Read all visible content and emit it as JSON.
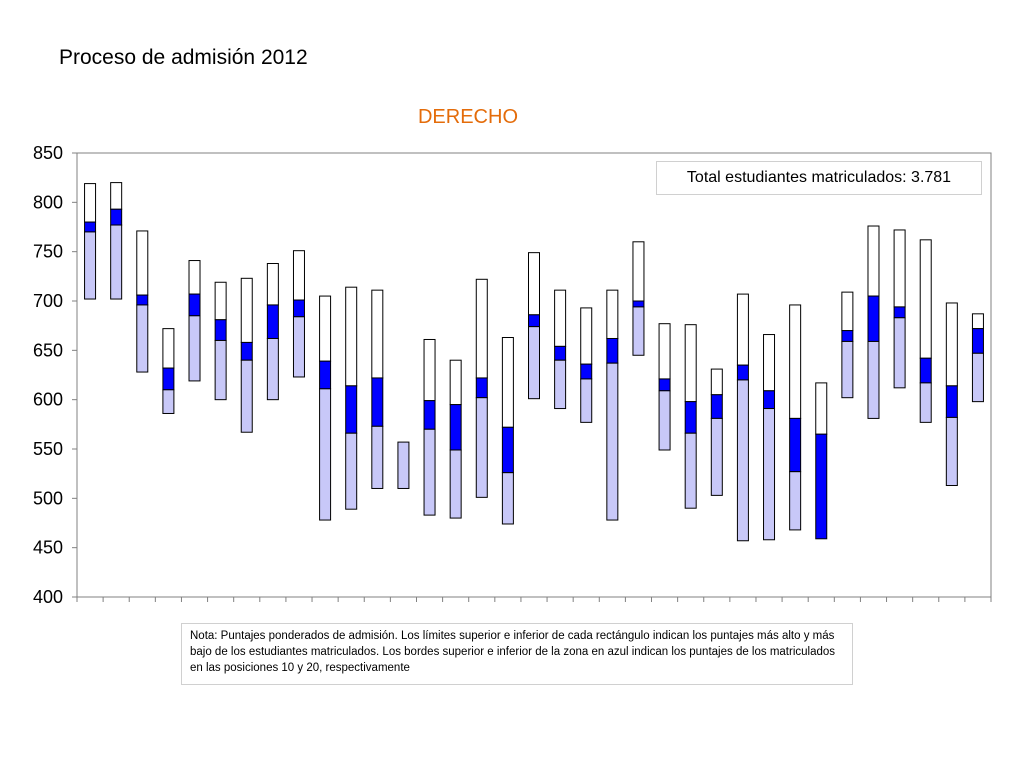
{
  "page_title": "Proceso de admisión 2012",
  "chart_title": "DERECHO",
  "total_label": "Total estudiantes matriculados: 3.781",
  "note": "Nota: Puntajes ponderados de admisión. Los límites superior e inferior de cada rectángulo indican los puntajes más alto y más bajo de los estudiantes matriculados. Los bordes superior e inferior de la zona en azul indican los puntajes de los matriculados en las posiciones 10 y 20, respectivamente",
  "colors": {
    "title_orange": "#e46c0a",
    "blue": "#0000ff",
    "light_blue": "#c8c8f8",
    "outline": "#000000",
    "white": "#ffffff"
  },
  "chart_data": {
    "type": "floating-bar",
    "ylim": [
      400,
      850
    ],
    "yticks": [
      400,
      450,
      500,
      550,
      600,
      650,
      700,
      750,
      800,
      850
    ],
    "grid": false,
    "bars": [
      {
        "max": 819,
        "p10": 780,
        "p20": 770,
        "min": 702
      },
      {
        "max": 820,
        "p10": 793,
        "p20": 777,
        "min": 702
      },
      {
        "max": 771,
        "p10": 706,
        "p20": 696,
        "min": 628
      },
      {
        "max": 672,
        "p10": 632,
        "p20": 610,
        "min": 586
      },
      {
        "max": 741,
        "p10": 707,
        "p20": 685,
        "min": 619
      },
      {
        "max": 719,
        "p10": 681,
        "p20": 660,
        "min": 600
      },
      {
        "max": 723,
        "p10": 658,
        "p20": 640,
        "min": 567
      },
      {
        "max": 738,
        "p10": 696,
        "p20": 662,
        "min": 600
      },
      {
        "max": 751,
        "p10": 701,
        "p20": 684,
        "min": 623
      },
      {
        "max": 705,
        "p10": 639,
        "p20": 611,
        "min": 478
      },
      {
        "max": 714,
        "p10": 614,
        "p20": 566,
        "min": 489
      },
      {
        "max": 711,
        "p10": 622,
        "p20": 573,
        "min": 510
      },
      {
        "max": 557,
        "p10": 557,
        "p20": 557,
        "min": 510
      },
      {
        "max": 661,
        "p10": 599,
        "p20": 570,
        "min": 483
      },
      {
        "max": 640,
        "p10": 595,
        "p20": 549,
        "min": 480
      },
      {
        "max": 722,
        "p10": 622,
        "p20": 602,
        "min": 501
      },
      {
        "max": 663,
        "p10": 572,
        "p20": 526,
        "min": 474
      },
      {
        "max": 749,
        "p10": 686,
        "p20": 674,
        "min": 601
      },
      {
        "max": 711,
        "p10": 654,
        "p20": 640,
        "min": 591
      },
      {
        "max": 693,
        "p10": 636,
        "p20": 621,
        "min": 577
      },
      {
        "max": 711,
        "p10": 662,
        "p20": 637,
        "min": 478
      },
      {
        "max": 760,
        "p10": 700,
        "p20": 694,
        "min": 645
      },
      {
        "max": 677,
        "p10": 621,
        "p20": 609,
        "min": 549
      },
      {
        "max": 676,
        "p10": 598,
        "p20": 566,
        "min": 490
      },
      {
        "max": 631,
        "p10": 605,
        "p20": 581,
        "min": 503
      },
      {
        "max": 707,
        "p10": 635,
        "p20": 620,
        "min": 457
      },
      {
        "max": 666,
        "p10": 609,
        "p20": 591,
        "min": 458
      },
      {
        "max": 696,
        "p10": 581,
        "p20": 527,
        "min": 468
      },
      {
        "max": 617,
        "p10": 565,
        "p20": 459,
        "min": 459
      },
      {
        "max": 709,
        "p10": 670,
        "p20": 659,
        "min": 602
      },
      {
        "max": 776,
        "p10": 705,
        "p20": 659,
        "min": 581
      },
      {
        "max": 772,
        "p10": 694,
        "p20": 683,
        "min": 612
      },
      {
        "max": 762,
        "p10": 642,
        "p20": 617,
        "min": 577
      },
      {
        "max": 698,
        "p10": 614,
        "p20": 582,
        "min": 513
      },
      {
        "max": 687,
        "p10": 672,
        "p20": 647,
        "min": 598
      }
    ]
  }
}
